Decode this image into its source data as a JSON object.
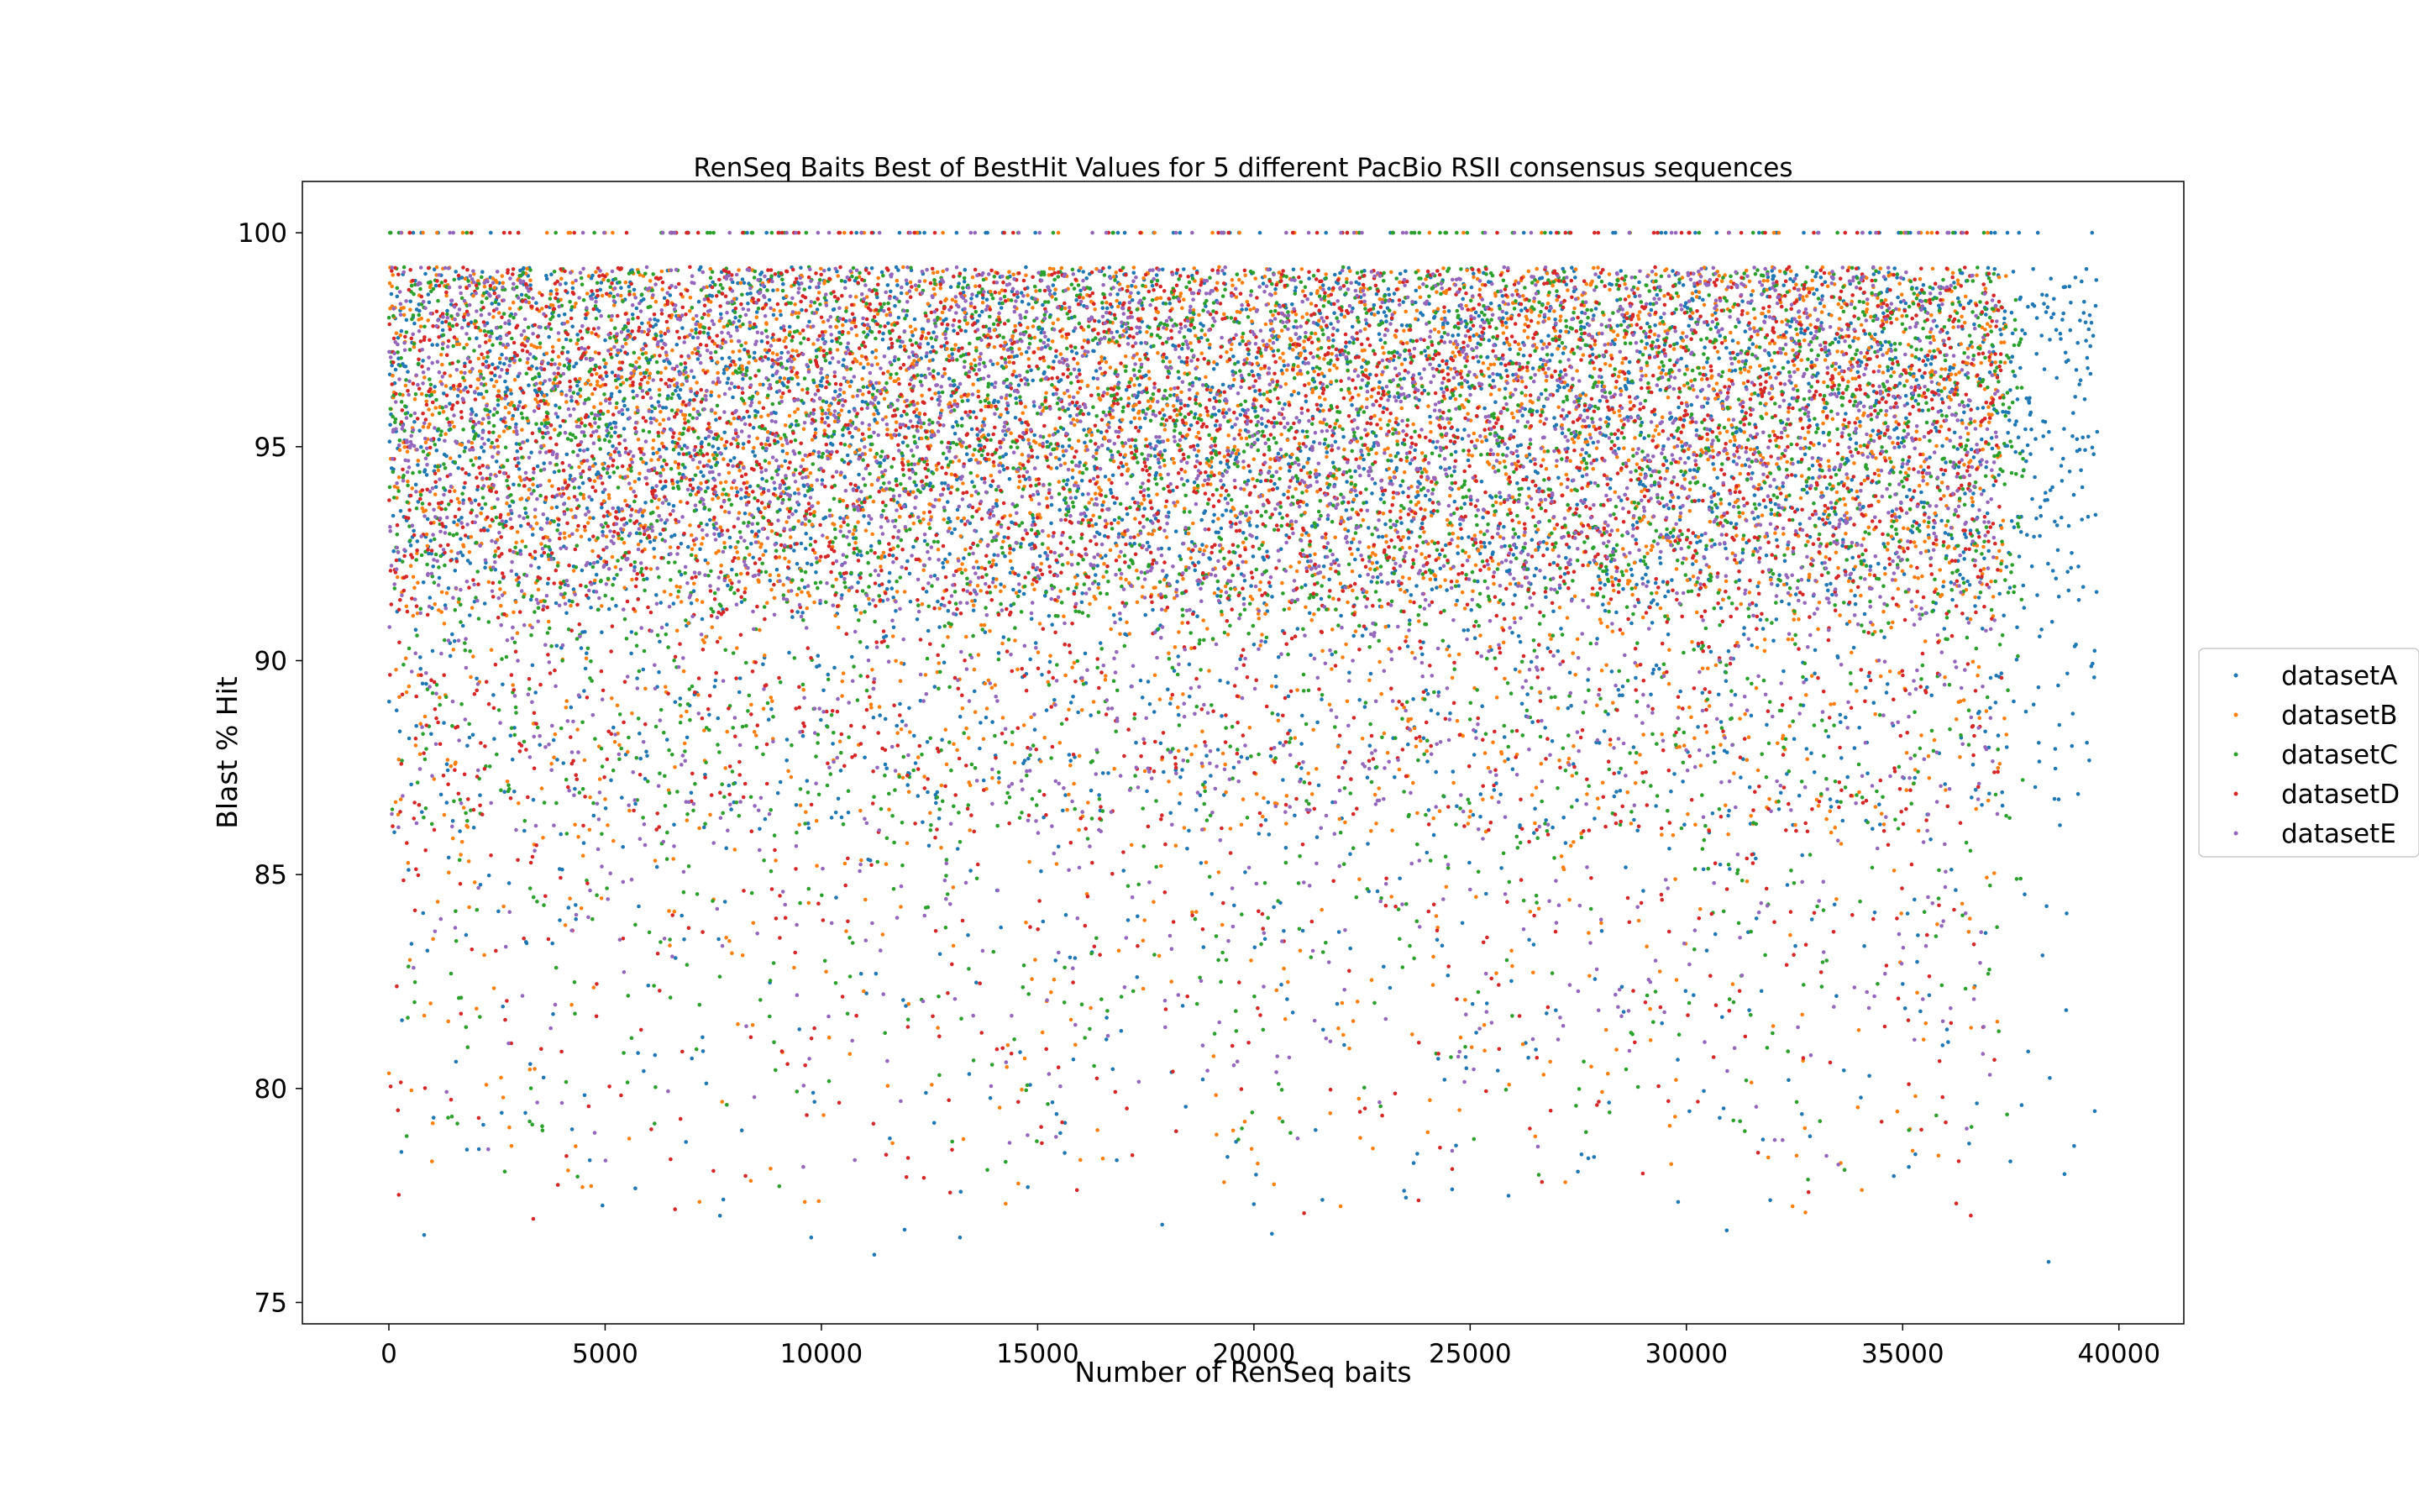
{
  "chart_data": {
    "type": "scatter",
    "title": "RenSeq Baits Best of BestHit Values for 5 different PacBio RSII consensus sequences",
    "xlabel": "Number of RenSeq baits",
    "ylabel": "Blast % Hit",
    "xlim": [
      -2000,
      41500
    ],
    "ylim": [
      74.5,
      101.2
    ],
    "xticks": [
      0,
      5000,
      10000,
      15000,
      20000,
      25000,
      30000,
      35000,
      40000
    ],
    "yticks": [
      75,
      80,
      85,
      90,
      95,
      100
    ],
    "grid": false,
    "legend_position": "center right, outside plot",
    "series": [
      {
        "name": "datasetA",
        "color": "#1f77b4",
        "n_points": 39500,
        "x_range": [
          0,
          39500
        ],
        "y_range": [
          75.9,
          100
        ],
        "dense_band": [
          91,
          99.2
        ]
      },
      {
        "name": "datasetB",
        "color": "#ff7f0e",
        "n_points": 37400,
        "x_range": [
          0,
          37400
        ],
        "y_range": [
          77,
          100
        ],
        "dense_band": [
          91,
          99.2
        ]
      },
      {
        "name": "datasetC",
        "color": "#2ca02c",
        "n_points": 37800,
        "x_range": [
          0,
          37800
        ],
        "y_range": [
          77.5,
          100
        ],
        "dense_band": [
          91,
          99.2
        ]
      },
      {
        "name": "datasetD",
        "color": "#d62728",
        "n_points": 37300,
        "x_range": [
          0,
          37300
        ],
        "y_range": [
          76.8,
          100
        ],
        "dense_band": [
          91,
          99.2
        ]
      },
      {
        "name": "datasetE",
        "color": "#9467bd",
        "n_points": 37200,
        "x_range": [
          0,
          37200
        ],
        "y_range": [
          78,
          100
        ],
        "dense_band": [
          91,
          99.2
        ]
      }
    ]
  }
}
